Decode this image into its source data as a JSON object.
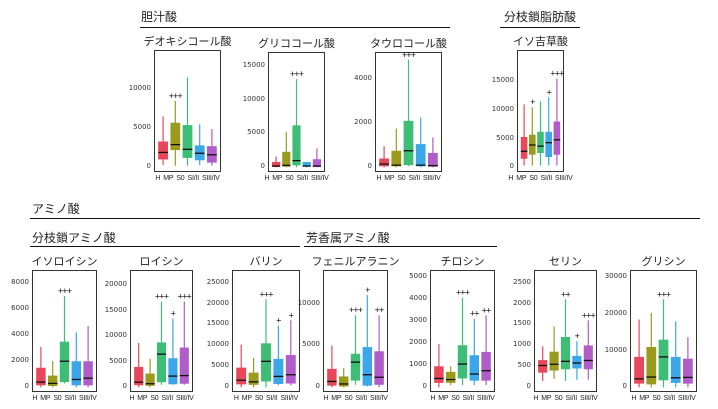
{
  "groups": {
    "bile_acid": "胆汁酸",
    "bcfa": "分枝鎖脂肪酸",
    "amino_acid": "アミノ酸",
    "bcaa": "分枝鎖アミノ酸",
    "aromatic": "芳香属アミノ酸"
  },
  "colors": {
    "H": "#e8475a",
    "MP": "#9a9a1c",
    "S0": "#3dbd75",
    "SI/II": "#3ba6e8",
    "SIII/IV": "#b05cc9"
  },
  "chart_data": [
    {
      "type": "box",
      "title": "デオキシコール酸",
      "categories": [
        "H",
        "MP",
        "S0",
        "SI/II",
        "SIII/IV"
      ],
      "yticks": [
        0,
        5000,
        10000
      ],
      "ylim": [
        0,
        15000
      ],
      "boxes": [
        [
          300,
          1000,
          1900,
          3300,
          6500
        ],
        [
          200,
          2200,
          2900,
          5700,
          8500
        ],
        [
          200,
          1200,
          2300,
          5400,
          11500
        ],
        [
          300,
          900,
          1800,
          2800,
          5500
        ],
        [
          200,
          600,
          1600,
          2700,
          4900
        ]
      ],
      "significance": [
        "",
        "+++",
        "",
        "",
        ""
      ]
    },
    {
      "type": "box",
      "title": "グリココール酸",
      "categories": [
        "H",
        "MP",
        "S0",
        "SI/II",
        "SIII/IV"
      ],
      "yticks": [
        0,
        5000,
        10000,
        15000
      ],
      "ylim": [
        0,
        17000
      ],
      "boxes": [
        [
          0,
          50,
          200,
          800,
          1600
        ],
        [
          0,
          100,
          300,
          2300,
          5200
        ],
        [
          0,
          300,
          1000,
          6200,
          13000
        ],
        [
          0,
          100,
          200,
          800,
          800
        ],
        [
          0,
          50,
          200,
          1200,
          2800
        ]
      ],
      "significance": [
        "",
        "",
        "+++",
        "",
        ""
      ]
    },
    {
      "type": "box",
      "title": "タウロコール酸",
      "categories": [
        "H",
        "MP",
        "S0",
        "SI/II",
        "SIII/IV"
      ],
      "yticks": [
        0,
        2000,
        4000
      ],
      "ylim": [
        0,
        5200
      ],
      "boxes": [
        [
          0,
          50,
          150,
          400,
          950
        ],
        [
          0,
          50,
          100,
          750,
          1750
        ],
        [
          50,
          100,
          750,
          2100,
          4850
        ],
        [
          0,
          50,
          100,
          1050,
          2250
        ],
        [
          0,
          30,
          80,
          650,
          1350
        ]
      ],
      "significance": [
        "",
        "",
        "+++",
        "",
        ""
      ]
    },
    {
      "type": "box",
      "title": "イソ吉草酸",
      "categories": [
        "H",
        "MP",
        "S0",
        "SI/II",
        "SIII/IV"
      ],
      "yticks": [
        0,
        5000,
        10000,
        15000
      ],
      "ylim": [
        0,
        20500
      ],
      "boxes": [
        [
          300,
          1500,
          2800,
          5300,
          11000
        ],
        [
          300,
          2200,
          3900,
          5700,
          10500
        ],
        [
          300,
          2500,
          3700,
          6200,
          11500
        ],
        [
          300,
          1800,
          4300,
          6200,
          12200
        ],
        [
          300,
          2200,
          4800,
          8000,
          15500
        ]
      ],
      "significance": [
        "",
        "+",
        "",
        "+",
        "+++"
      ]
    },
    {
      "type": "box",
      "title": "イソロイシン",
      "categories": [
        "H",
        "MP",
        "S0",
        "SI/II",
        "SIII/IV"
      ],
      "yticks": [
        0,
        2000,
        4000,
        6000,
        8000
      ],
      "ylim": [
        0,
        9000
      ],
      "boxes": [
        [
          0,
          150,
          400,
          1500,
          3100
        ],
        [
          0,
          100,
          300,
          900,
          2000
        ],
        [
          300,
          400,
          2000,
          3500,
          7000
        ],
        [
          0,
          150,
          600,
          2000,
          4200
        ],
        [
          0,
          150,
          700,
          2000,
          4700
        ]
      ],
      "significance": [
        "",
        "",
        "+++",
        "",
        ""
      ]
    },
    {
      "type": "box",
      "title": "ロイシン",
      "categories": [
        "H",
        "MP",
        "S0",
        "SI/II",
        "SIII/IV"
      ],
      "yticks": [
        0,
        5000,
        10000,
        15000,
        20000
      ],
      "ylim": [
        0,
        23000
      ],
      "boxes": [
        [
          0,
          400,
          1000,
          4000,
          8700
        ],
        [
          0,
          300,
          700,
          2700,
          5600
        ],
        [
          500,
          1000,
          6500,
          8800,
          16800
        ],
        [
          500,
          600,
          2200,
          5700,
          13500
        ],
        [
          500,
          700,
          2300,
          7800,
          16800
        ]
      ],
      "significance": [
        "",
        "",
        "+++",
        "+",
        "+++"
      ]
    },
    {
      "type": "box",
      "title": "バリン",
      "categories": [
        "H",
        "MP",
        "S0",
        "SI/II",
        "SIII/IV"
      ],
      "yticks": [
        0,
        5000,
        10000,
        15000,
        20000,
        25000
      ],
      "ylim": [
        0,
        28000
      ],
      "boxes": [
        [
          0,
          700,
          1700,
          4700,
          10200
        ],
        [
          0,
          600,
          1300,
          3500,
          7000
        ],
        [
          0,
          1400,
          6200,
          10500,
          21000
        ],
        [
          500,
          800,
          2600,
          6800,
          14700
        ],
        [
          500,
          900,
          3000,
          7700,
          16000
        ]
      ],
      "significance": [
        "",
        "",
        "+++",
        "+",
        "+"
      ]
    },
    {
      "type": "box",
      "title": "フェニルアラニン",
      "categories": [
        "H",
        "MP",
        "S0",
        "SI/II",
        "SIII/IV"
      ],
      "yticks": [
        0,
        5000,
        10000
      ],
      "ylim": [
        0,
        14000
      ],
      "boxes": [
        [
          0,
          200,
          700,
          2200,
          5000
        ],
        [
          0,
          100,
          400,
          1300,
          2300
        ],
        [
          300,
          800,
          3000,
          4000,
          8600
        ],
        [
          100,
          200,
          1500,
          4800,
          11000
        ],
        [
          0,
          300,
          1200,
          4300,
          8600
        ]
      ],
      "significance": [
        "",
        "",
        "+++",
        "+",
        "++"
      ]
    },
    {
      "type": "box",
      "title": "チロシン",
      "categories": [
        "H",
        "MP",
        "S0",
        "SI/II",
        "SIII/IV"
      ],
      "yticks": [
        0,
        1000,
        2000,
        3000,
        4000,
        5000
      ],
      "ylim": [
        0,
        5300
      ],
      "boxes": [
        [
          0,
          200,
          400,
          950,
          1950
        ],
        [
          100,
          200,
          350,
          700,
          950
        ],
        [
          100,
          400,
          1050,
          1900,
          4050
        ],
        [
          100,
          300,
          600,
          1450,
          3100
        ],
        [
          100,
          300,
          750,
          1600,
          3250
        ]
      ],
      "significance": [
        "",
        "",
        "+++",
        "++",
        "++"
      ]
    },
    {
      "type": "box",
      "title": "セリン",
      "categories": [
        "H",
        "MP",
        "S0",
        "SI/II",
        "SIII/IV"
      ],
      "yticks": [
        0,
        500,
        1000,
        1500,
        2000,
        2500
      ],
      "ylim": [
        0,
        2800
      ],
      "boxes": [
        [
          150,
          350,
          520,
          650,
          980
        ],
        [
          200,
          400,
          550,
          850,
          1450
        ],
        [
          150,
          430,
          620,
          1200,
          2100
        ],
        [
          180,
          450,
          580,
          750,
          1100
        ],
        [
          180,
          430,
          640,
          1000,
          1600
        ]
      ],
      "significance": [
        "",
        "",
        "++",
        "+",
        "+++"
      ]
    },
    {
      "type": "box",
      "title": "グリシン",
      "categories": [
        "H",
        "MP",
        "S0",
        "SI/II",
        "SIII/IV"
      ],
      "yticks": [
        0,
        10000,
        20000,
        30000
      ],
      "ylim": [
        0,
        32000
      ],
      "boxes": [
        [
          0,
          1000,
          2300,
          8300,
          18500
        ],
        [
          0,
          800,
          2800,
          11000,
          20300
        ],
        [
          0,
          1900,
          8300,
          13000,
          24000
        ],
        [
          0,
          1200,
          2600,
          8300,
          18000
        ],
        [
          0,
          1000,
          2700,
          7800,
          13700
        ]
      ],
      "significance": [
        "",
        "",
        "+++",
        "",
        ""
      ]
    }
  ]
}
